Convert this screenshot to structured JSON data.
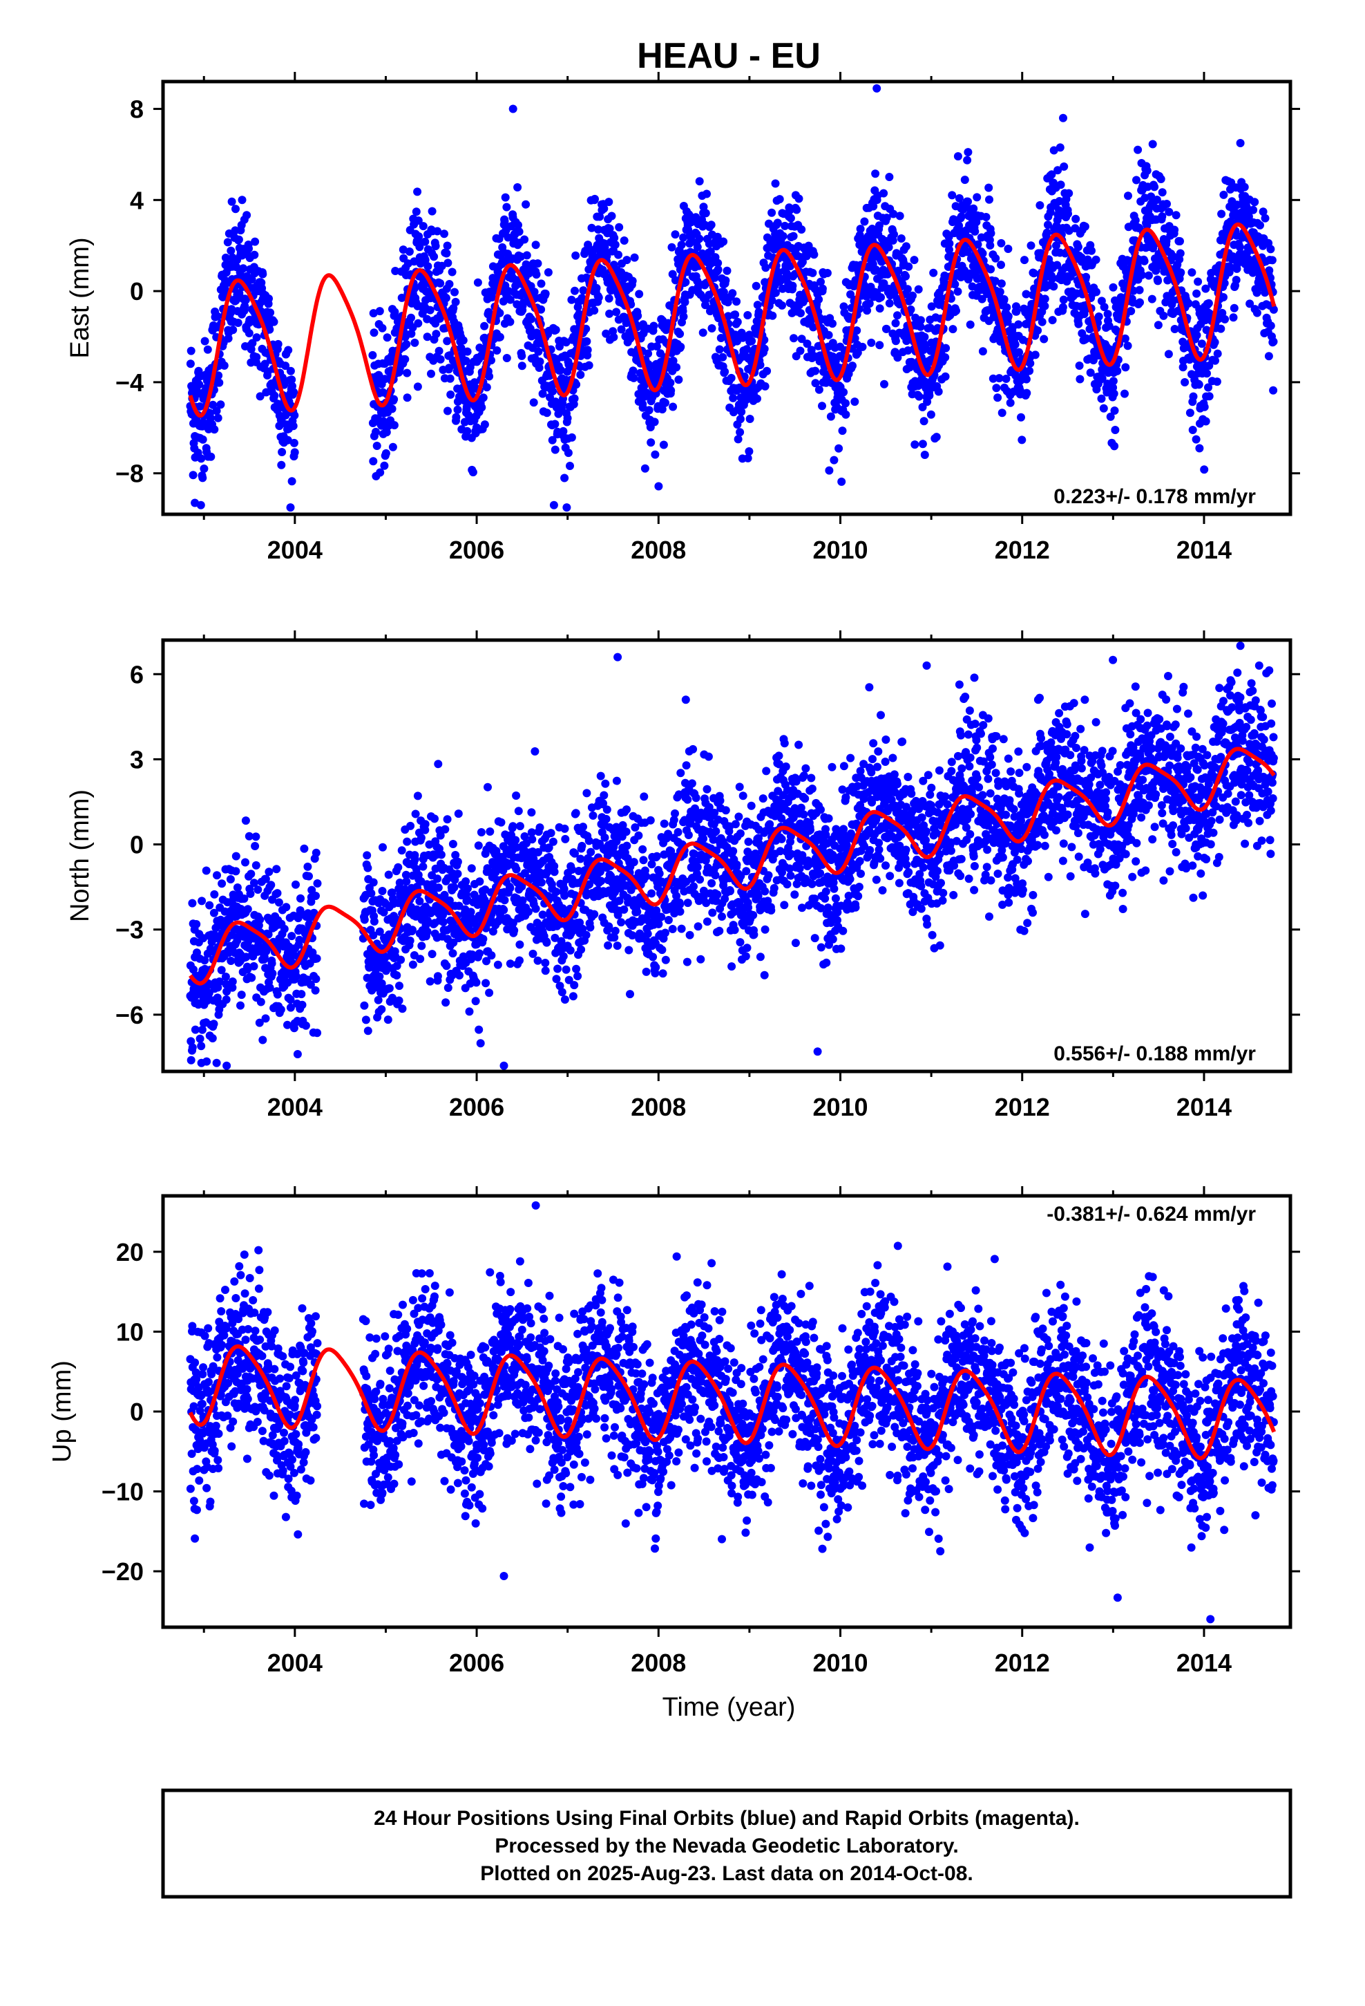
{
  "title": "HEAU - EU",
  "colors": {
    "points": "#0000ff",
    "fit": "#ff0000",
    "axes": "#000000",
    "background": "#ffffff"
  },
  "xlabel": "Time (year)",
  "chart_data": [
    {
      "type": "scatter",
      "name": "east",
      "ylabel": "East (mm)",
      "rate_text": "0.223+/- 0.178 mm/yr",
      "rate_position": "bottom-right",
      "xlim": [
        2002.55,
        2014.95
      ],
      "ylim": [
        -9.8,
        9.2
      ],
      "xticks": [
        2004,
        2006,
        2008,
        2010,
        2012,
        2014
      ],
      "yticks": [
        -8,
        -4,
        0,
        4,
        8
      ],
      "ytick_labels": [
        "−8",
        "−4",
        "0",
        "4",
        "8"
      ],
      "data_range": [
        2002.85,
        2014.77
      ],
      "gap": [
        2004.0,
        2004.85
      ],
      "fit": {
        "offset": -1.0,
        "trend": 0.223,
        "annual_amplitude": 2.8,
        "semiannual_amplitude": 0.5,
        "start_value": -4.1,
        "end_value": -0.6
      },
      "outliers": [
        [
          2003.42,
          4.0
        ],
        [
          2006.4,
          8.0
        ],
        [
          2006.85,
          -9.4
        ],
        [
          2010.4,
          8.9
        ],
        [
          2012.45,
          7.6
        ],
        [
          2014.4,
          6.5
        ],
        [
          2002.9,
          -9.3
        ],
        [
          2013.95,
          -6.9
        ]
      ]
    },
    {
      "type": "scatter",
      "name": "north",
      "ylabel": "North (mm)",
      "rate_text": "0.556+/- 0.188 mm/yr",
      "rate_position": "bottom-right",
      "xlim": [
        2002.55,
        2014.95
      ],
      "ylim": [
        -8.0,
        7.2
      ],
      "xticks": [
        2004,
        2006,
        2008,
        2010,
        2012,
        2014
      ],
      "yticks": [
        -6,
        -3,
        0,
        3,
        6
      ],
      "ytick_labels": [
        "−6",
        "−3",
        "0",
        "3",
        "6"
      ],
      "data_range": [
        2002.85,
        2014.77
      ],
      "gap": [
        2004.25,
        2004.75
      ],
      "fit": {
        "offset": -0.6,
        "trend": 0.556,
        "annual_amplitude": 0.9,
        "semiannual_amplitude": 0.2,
        "start_value": -3.6,
        "end_value": 2.2
      },
      "outliers": [
        [
          2007.55,
          6.6
        ],
        [
          2010.95,
          6.3
        ],
        [
          2009.75,
          -7.3
        ],
        [
          2006.3,
          -7.8
        ],
        [
          2003.25,
          -7.8
        ],
        [
          2014.4,
          7.0
        ],
        [
          2008.3,
          5.1
        ]
      ]
    },
    {
      "type": "scatter",
      "name": "up",
      "ylabel": "Up (mm)",
      "rate_text": "-0.381+/- 0.624 mm/yr",
      "rate_position": "top-right",
      "xlim": [
        2002.55,
        2014.95
      ],
      "ylim": [
        -27.0,
        27.0
      ],
      "xticks": [
        2004,
        2006,
        2008,
        2010,
        2012,
        2014
      ],
      "yticks": [
        -20,
        -10,
        0,
        10,
        20
      ],
      "ytick_labels": [
        "−20",
        "−10",
        "0",
        "10",
        "20"
      ],
      "data_range": [
        2002.85,
        2014.77
      ],
      "gap": [
        2004.25,
        2004.75
      ],
      "fit": {
        "offset": 1.5,
        "trend": -0.381,
        "annual_amplitude": 4.8,
        "semiannual_amplitude": 0.8,
        "start_value": 1.5,
        "end_value": -0.5
      },
      "outliers": [
        [
          2006.65,
          25.8
        ],
        [
          2003.6,
          20.2
        ],
        [
          2008.2,
          19.4
        ],
        [
          2014.07,
          -26.0
        ],
        [
          2006.3,
          -20.6
        ],
        [
          2013.05,
          -23.3
        ],
        [
          2002.9,
          -15.9
        ]
      ]
    }
  ],
  "footer": {
    "line1": "24 Hour Positions Using Final Orbits (blue) and Rapid Orbits (magenta).",
    "line2": "Processed by the Nevada Geodetic Laboratory.",
    "line3": "Plotted on 2025-Aug-23. Last data on 2014-Oct-08."
  }
}
